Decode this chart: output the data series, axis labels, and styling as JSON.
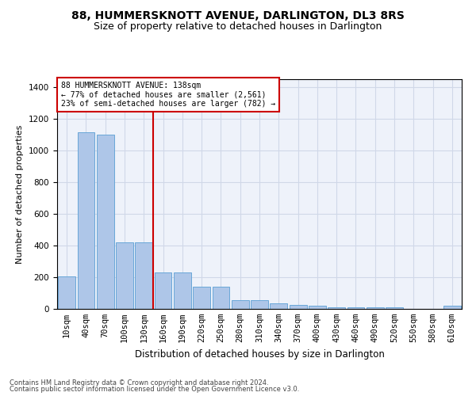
{
  "title": "88, HUMMERSKNOTT AVENUE, DARLINGTON, DL3 8RS",
  "subtitle": "Size of property relative to detached houses in Darlington",
  "xlabel": "Distribution of detached houses by size in Darlington",
  "ylabel": "Number of detached properties",
  "categories": [
    "10sqm",
    "40sqm",
    "70sqm",
    "100sqm",
    "130sqm",
    "160sqm",
    "190sqm",
    "220sqm",
    "250sqm",
    "280sqm",
    "310sqm",
    "340sqm",
    "370sqm",
    "400sqm",
    "430sqm",
    "460sqm",
    "490sqm",
    "520sqm",
    "550sqm",
    "580sqm",
    "610sqm"
  ],
  "values": [
    205,
    1115,
    1100,
    420,
    420,
    230,
    230,
    140,
    140,
    55,
    55,
    35,
    25,
    20,
    10,
    10,
    10,
    10,
    0,
    0,
    20
  ],
  "bar_color": "#aec6e8",
  "bar_edge_color": "#5a9fd4",
  "grid_color": "#d0d8e8",
  "bg_color": "#eef2fa",
  "vline_x": 4.5,
  "vline_color": "#cc0000",
  "annotation_text": "88 HUMMERSKNOTT AVENUE: 138sqm\n← 77% of detached houses are smaller (2,561)\n23% of semi-detached houses are larger (782) →",
  "annotation_box_color": "#ffffff",
  "annotation_box_edge": "#cc0000",
  "footer1": "Contains HM Land Registry data © Crown copyright and database right 2024.",
  "footer2": "Contains public sector information licensed under the Open Government Licence v3.0.",
  "ylim": [
    0,
    1450
  ],
  "title_fontsize": 10,
  "subtitle_fontsize": 9,
  "xlabel_fontsize": 8.5,
  "ylabel_fontsize": 8,
  "tick_fontsize": 7.5,
  "annotation_fontsize": 7,
  "footer_fontsize": 6
}
